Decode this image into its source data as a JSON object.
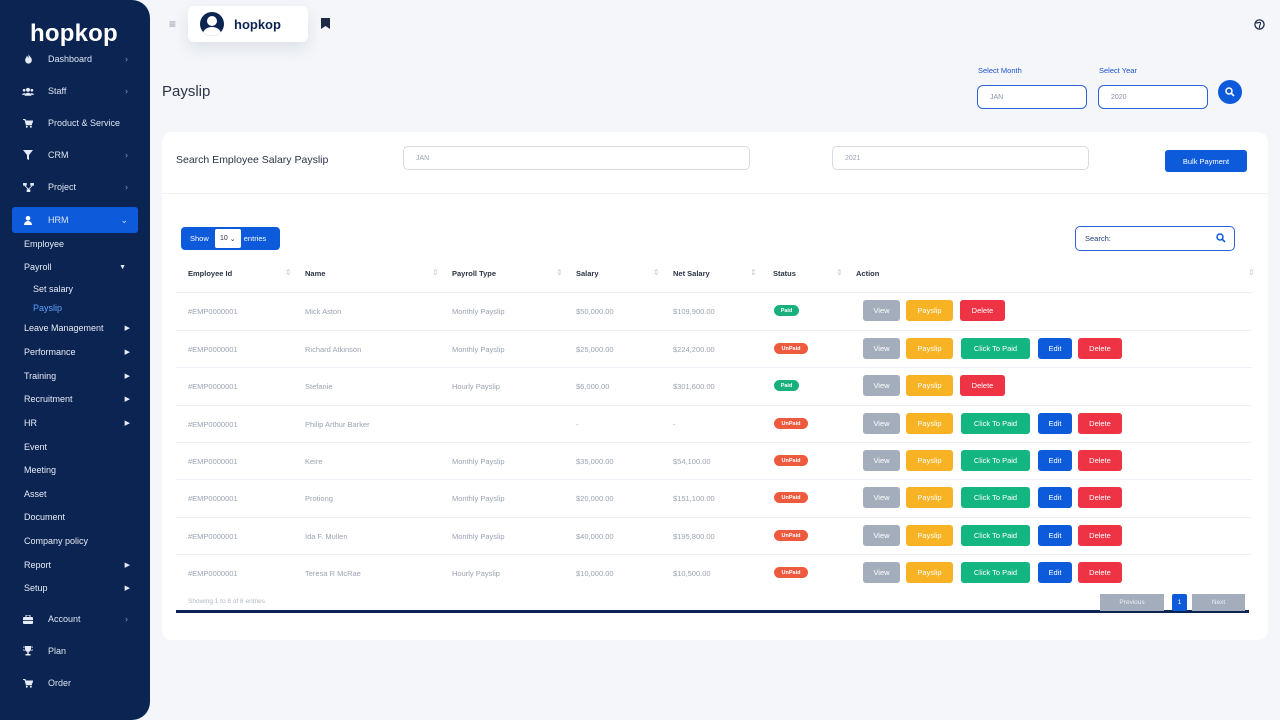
{
  "app": {
    "logo": "hopkop",
    "brand_name": "hopkop"
  },
  "sidebar": {
    "top_items": [
      {
        "label": "Dashboard",
        "icon": "fire-icon"
      },
      {
        "label": "Staff",
        "icon": "users-icon"
      },
      {
        "label": "Product & Service",
        "icon": "cart-icon"
      },
      {
        "label": "CRM",
        "icon": "filter-icon"
      },
      {
        "label": "Project",
        "icon": "share-icon"
      },
      {
        "label": "HRM",
        "icon": "user-icon"
      }
    ],
    "hrm_items": [
      "Employee",
      "Payroll",
      "Leave Management",
      "Performance",
      "Training",
      "Recruitment",
      "HR",
      "Event",
      "Meeting",
      "Asset",
      "Document",
      "Company policy",
      "Report",
      "Setup"
    ],
    "payroll_sub": [
      "Set salary",
      "Payslip"
    ],
    "bottom_items": [
      {
        "label": "Account",
        "icon": "briefcase-icon"
      },
      {
        "label": "Plan",
        "icon": "trophy-icon"
      },
      {
        "label": "Order",
        "icon": "cart-icon"
      }
    ]
  },
  "header": {
    "page_title": "Payslip",
    "select_month_label": "Select Month",
    "select_month_value": "JAN",
    "select_year_label": "Select Year",
    "select_year_value": "2020"
  },
  "card": {
    "search_title": "Search Employee Salary Payslip",
    "month_value": "JAN",
    "year_value": "2021",
    "bulk_payment": "Bulk Payment",
    "show_label": "Show",
    "entries_value": "10",
    "entries_label": "entries",
    "search_label": "Search:"
  },
  "table": {
    "columns": [
      "Employee Id",
      "Name",
      "Payroll Type",
      "Salary",
      "Net Salary",
      "Status",
      "Action"
    ],
    "rows": [
      {
        "id": "#EMP0000001",
        "name": "Mick Aston",
        "type": "Monthly Payslip",
        "salary": "$50,000.00",
        "net": "$109,900.00",
        "status": "Paid"
      },
      {
        "id": "#EMP0000001",
        "name": "Richard Atkinson",
        "type": "Monthly Payslip",
        "salary": "$25,000.00",
        "net": "$224,200.00",
        "status": "UnPaid"
      },
      {
        "id": "#EMP0000001",
        "name": "Stefanie",
        "type": "Hourly Payslip",
        "salary": "$6,000.00",
        "net": "$301,600.00",
        "status": "Paid"
      },
      {
        "id": "#EMP0000001",
        "name": "Philip Arthur Barker",
        "type": "",
        "salary": "-",
        "net": "-",
        "status": "UnPaid"
      },
      {
        "id": "#EMP0000001",
        "name": "Keire",
        "type": "Monthly Payslip",
        "salary": "$35,000.00",
        "net": "$54,100.00",
        "status": "UnPaid"
      },
      {
        "id": "#EMP0000001",
        "name": "Protiong",
        "type": "Monthly Payslip",
        "salary": "$20,000.00",
        "net": "$151,100.00",
        "status": "UnPaid"
      },
      {
        "id": "#EMP0000001",
        "name": "Ida F. Mullen",
        "type": "Monthly Payslip",
        "salary": "$40,000.00",
        "net": "$195,800.00",
        "status": "UnPaid"
      },
      {
        "id": "#EMP0000001",
        "name": "Teresa R McRae",
        "type": "Hourly Payslip",
        "salary": "$10,000.00",
        "net": "$10,500.00",
        "status": "UnPaid"
      }
    ],
    "actions": {
      "view": "View",
      "payslip": "Payslip",
      "click_to_paid": "Click To Paid",
      "edit": "Edit",
      "delete": "Delete"
    }
  },
  "footer": {
    "info": "Showing 1 to 8 of 8 entries",
    "previous": "Previous",
    "page": "1",
    "next": "Next"
  },
  "colors": {
    "sidebar": "#0c2451",
    "primary": "#0d5bdb",
    "paid": "#18b07d",
    "unpaid": "#ee5a3d",
    "warning": "#f8b324",
    "danger": "#ee3344"
  }
}
